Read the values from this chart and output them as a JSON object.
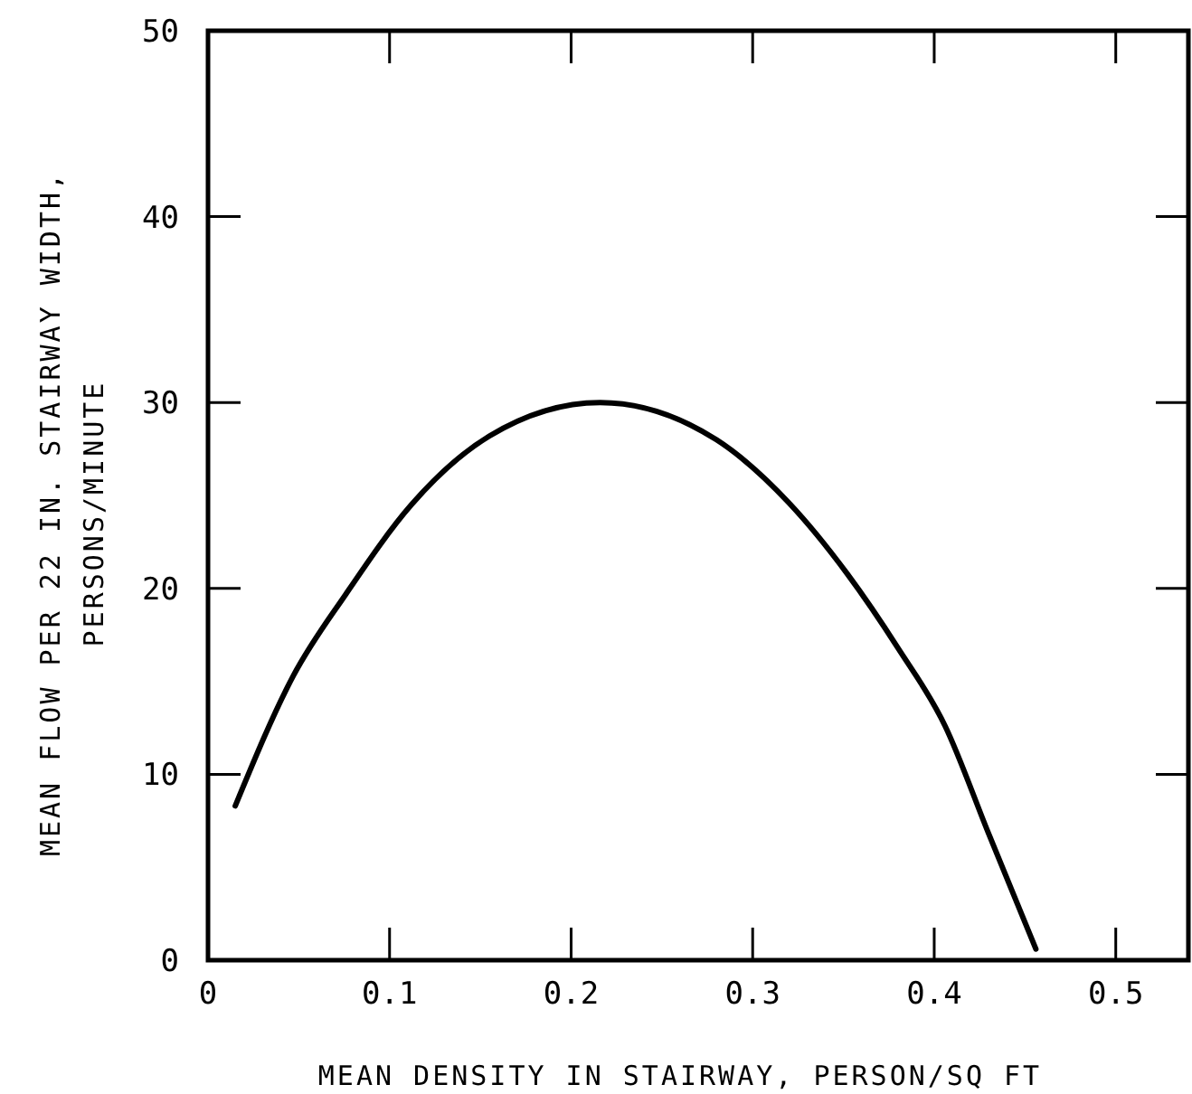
{
  "chart_data": {
    "type": "line",
    "xlabel": "MEAN DENSITY IN STAIRWAY, PERSON/SQ FT",
    "ylabel": "MEAN FLOW PER 22 IN. STAIRWAY WIDTH,\nPERSONS/MINUTE",
    "xlim": [
      0,
      0.54
    ],
    "ylim": [
      0,
      50
    ],
    "xticks": [
      0,
      {
        "value": 0.1,
        "label": "0.1"
      },
      {
        "value": 0.2,
        "label": "0.2"
      },
      {
        "value": 0.3,
        "label": "0.3"
      },
      {
        "value": 0.4,
        "label": "0.4"
      },
      {
        "value": 0.5,
        "label": "0.5"
      }
    ],
    "yticks": [
      0,
      10,
      20,
      30,
      40,
      50
    ],
    "grid": false,
    "marker": "none",
    "line_style": "solid",
    "series": [
      {
        "color": "#000000",
        "x": [
          0.015,
          0.047,
          0.076,
          0.112,
          0.155,
          0.216,
          0.28,
          0.32,
          0.352,
          0.38,
          0.406,
          0.43,
          0.456
        ],
        "values": [
          8.3,
          15.3,
          19.7,
          24.5,
          28.2,
          30,
          28,
          24.6,
          20.8,
          16.8,
          12.6,
          6.8,
          0.6
        ]
      }
    ]
  }
}
